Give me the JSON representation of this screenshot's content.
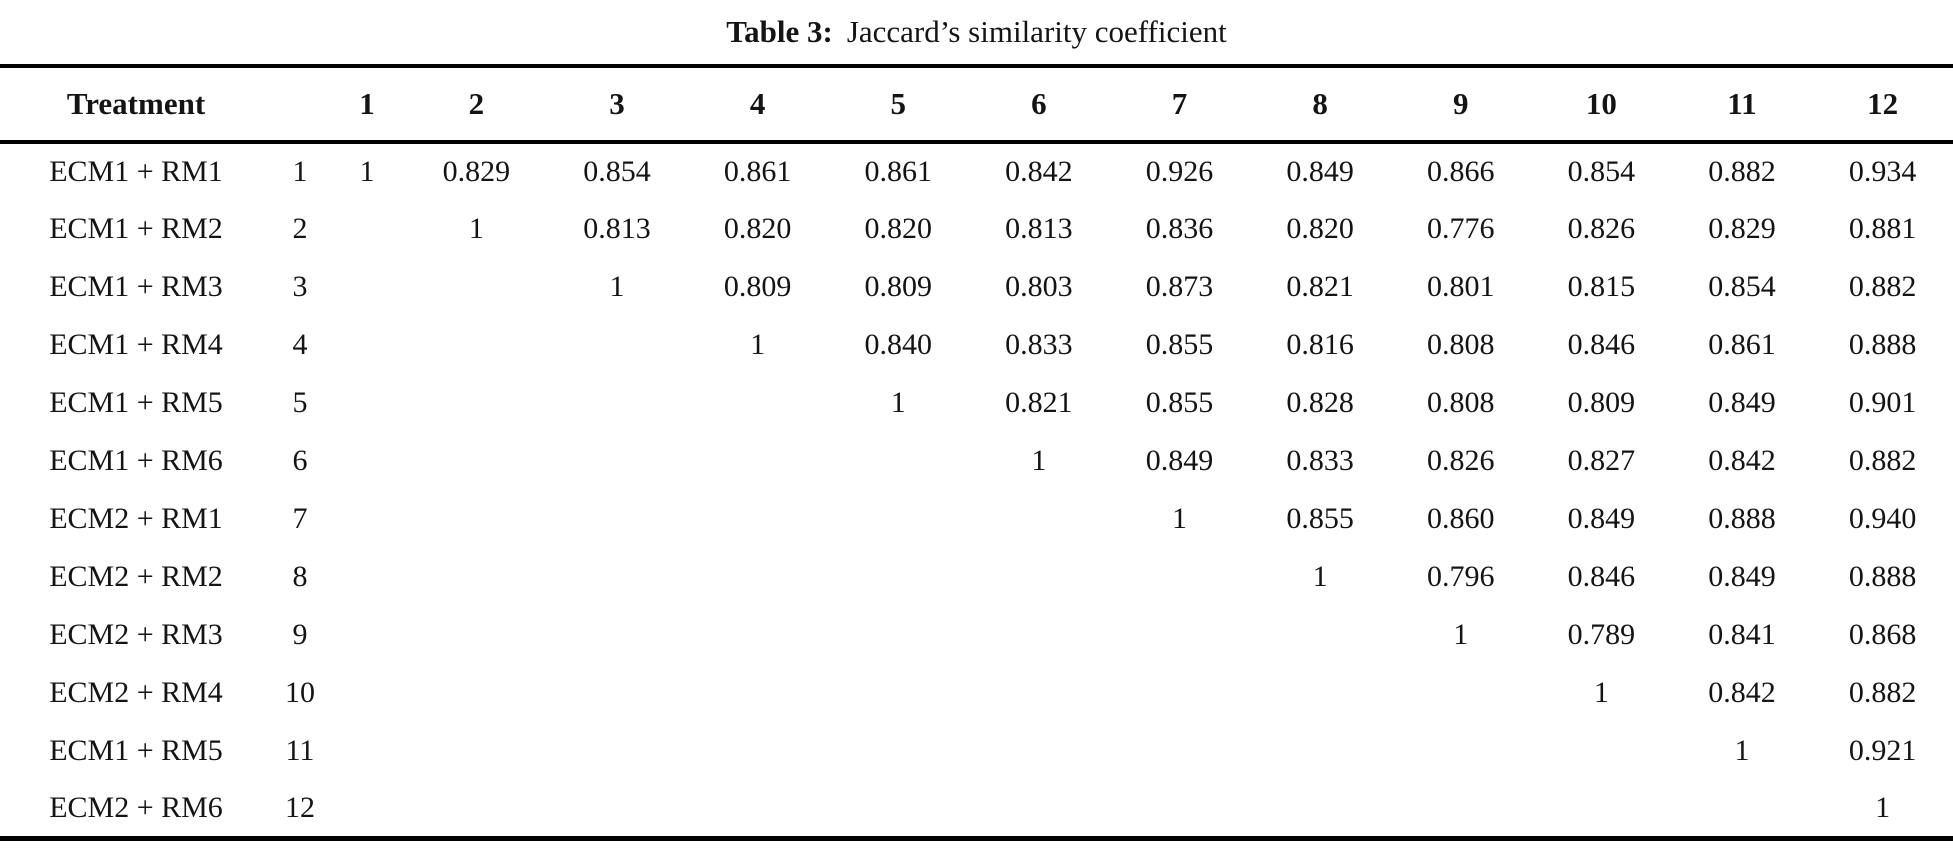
{
  "caption": {
    "label": "Table 3:",
    "text": "Jaccard’s similarity coefficient"
  },
  "table": {
    "header": {
      "treatment": "Treatment",
      "index_header": "",
      "columns": [
        "1",
        "2",
        "3",
        "4",
        "5",
        "6",
        "7",
        "8",
        "9",
        "10",
        "11",
        "12"
      ]
    },
    "rows": [
      {
        "treatment": "ECM1 + RM1",
        "index": "1",
        "values": [
          "1",
          "0.829",
          "0.854",
          "0.861",
          "0.861",
          "0.842",
          "0.926",
          "0.849",
          "0.866",
          "0.854",
          "0.882",
          "0.934"
        ]
      },
      {
        "treatment": "ECM1 + RM2",
        "index": "2",
        "values": [
          "",
          "1",
          "0.813",
          "0.820",
          "0.820",
          "0.813",
          "0.836",
          "0.820",
          "0.776",
          "0.826",
          "0.829",
          "0.881"
        ]
      },
      {
        "treatment": "ECM1 + RM3",
        "index": "3",
        "values": [
          "",
          "",
          "1",
          "0.809",
          "0.809",
          "0.803",
          "0.873",
          "0.821",
          "0.801",
          "0.815",
          "0.854",
          "0.882"
        ]
      },
      {
        "treatment": "ECM1 + RM4",
        "index": "4",
        "values": [
          "",
          "",
          "",
          "1",
          "0.840",
          "0.833",
          "0.855",
          "0.816",
          "0.808",
          "0.846",
          "0.861",
          "0.888"
        ]
      },
      {
        "treatment": "ECM1 + RM5",
        "index": "5",
        "values": [
          "",
          "",
          "",
          "",
          "1",
          "0.821",
          "0.855",
          "0.828",
          "0.808",
          "0.809",
          "0.849",
          "0.901"
        ]
      },
      {
        "treatment": "ECM1 + RM6",
        "index": "6",
        "values": [
          "",
          "",
          "",
          "",
          "",
          "1",
          "0.849",
          "0.833",
          "0.826",
          "0.827",
          "0.842",
          "0.882"
        ]
      },
      {
        "treatment": "ECM2 + RM1",
        "index": "7",
        "values": [
          "",
          "",
          "",
          "",
          "",
          "",
          "1",
          "0.855",
          "0.860",
          "0.849",
          "0.888",
          "0.940"
        ]
      },
      {
        "treatment": "ECM2 + RM2",
        "index": "8",
        "values": [
          "",
          "",
          "",
          "",
          "",
          "",
          "",
          "1",
          "0.796",
          "0.846",
          "0.849",
          "0.888"
        ]
      },
      {
        "treatment": "ECM2 + RM3",
        "index": "9",
        "values": [
          "",
          "",
          "",
          "",
          "",
          "",
          "",
          "",
          "1",
          "0.789",
          "0.841",
          "0.868"
        ]
      },
      {
        "treatment": "ECM2 + RM4",
        "index": "10",
        "values": [
          "",
          "",
          "",
          "",
          "",
          "",
          "",
          "",
          "",
          "1",
          "0.842",
          "0.882"
        ]
      },
      {
        "treatment": "ECM1 + RM5",
        "index": "11",
        "values": [
          "",
          "",
          "",
          "",
          "",
          "",
          "",
          "",
          "",
          "",
          "1",
          "0.921"
        ]
      },
      {
        "treatment": "ECM2 + RM6",
        "index": "12",
        "values": [
          "",
          "",
          "",
          "",
          "",
          "",
          "",
          "",
          "",
          "",
          "",
          "1"
        ]
      }
    ]
  }
}
